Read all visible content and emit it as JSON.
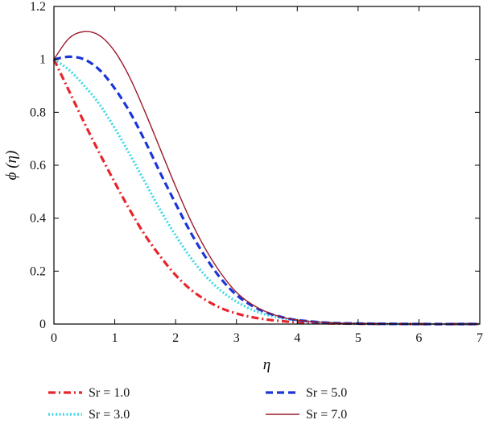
{
  "chart_data": {
    "type": "line",
    "xlabel": "η",
    "ylabel": "ϕ (η)",
    "xlim": [
      0,
      7
    ],
    "ylim": [
      0,
      1.2
    ],
    "x_ticks": [
      0,
      1,
      2,
      3,
      4,
      5,
      6,
      7
    ],
    "y_ticks": [
      0,
      0.2,
      0.4,
      0.6,
      0.8,
      1,
      1.2
    ],
    "x_tick_labels": [
      "0",
      "1",
      "2",
      "3",
      "4",
      "5",
      "6",
      "7"
    ],
    "y_tick_labels": [
      "0",
      "0.2",
      "0.4",
      "0.6",
      "0.8",
      "1",
      "1.2"
    ],
    "grid": false,
    "legend_position": "bottom",
    "series": [
      {
        "name": "Sr = 1.0",
        "color": "#e8242b",
        "style": "dash-dot",
        "x": [
          0,
          0.25,
          0.5,
          0.75,
          1.0,
          1.25,
          1.5,
          1.75,
          2.0,
          2.25,
          2.5,
          2.75,
          3.0,
          3.25,
          3.5,
          3.75,
          4.0,
          4.5,
          5.0,
          6.0,
          7.0
        ],
        "y": [
          1.0,
          0.88,
          0.76,
          0.645,
          0.535,
          0.43,
          0.335,
          0.255,
          0.185,
          0.13,
          0.09,
          0.06,
          0.04,
          0.026,
          0.017,
          0.011,
          0.007,
          0.003,
          0.001,
          0.0,
          0.0
        ]
      },
      {
        "name": "Sr = 3.0",
        "color": "#3fd8e8",
        "style": "dotted",
        "x": [
          0,
          0.25,
          0.5,
          0.75,
          1.0,
          1.25,
          1.5,
          1.75,
          2.0,
          2.25,
          2.5,
          2.75,
          3.0,
          3.25,
          3.5,
          3.75,
          4.0,
          4.5,
          5.0,
          6.0,
          7.0
        ],
        "y": [
          1.0,
          0.96,
          0.9,
          0.83,
          0.74,
          0.64,
          0.535,
          0.43,
          0.335,
          0.25,
          0.18,
          0.125,
          0.085,
          0.055,
          0.035,
          0.022,
          0.014,
          0.005,
          0.002,
          0.0,
          0.0
        ]
      },
      {
        "name": "Sr = 5.0",
        "color": "#1a35d8",
        "style": "dashed",
        "x": [
          0,
          0.25,
          0.5,
          0.75,
          1.0,
          1.25,
          1.5,
          1.75,
          2.0,
          2.25,
          2.5,
          2.75,
          3.0,
          3.25,
          3.5,
          3.75,
          4.0,
          4.5,
          5.0,
          6.0,
          7.0
        ],
        "y": [
          1.0,
          1.01,
          1.0,
          0.96,
          0.89,
          0.8,
          0.69,
          0.57,
          0.455,
          0.345,
          0.25,
          0.17,
          0.11,
          0.07,
          0.043,
          0.026,
          0.015,
          0.005,
          0.002,
          0.0,
          0.0
        ]
      },
      {
        "name": "Sr = 7.0",
        "color": "#9b1b2a",
        "style": "solid",
        "x": [
          0,
          0.25,
          0.5,
          0.75,
          1.0,
          1.25,
          1.5,
          1.75,
          2.0,
          2.25,
          2.5,
          2.75,
          3.0,
          3.25,
          3.5,
          3.75,
          4.0,
          4.5,
          5.0,
          6.0,
          7.0
        ],
        "y": [
          1.0,
          1.08,
          1.105,
          1.09,
          1.03,
          0.93,
          0.8,
          0.66,
          0.52,
          0.39,
          0.28,
          0.19,
          0.12,
          0.075,
          0.045,
          0.026,
          0.015,
          0.005,
          0.002,
          0.0,
          0.0
        ]
      }
    ]
  }
}
